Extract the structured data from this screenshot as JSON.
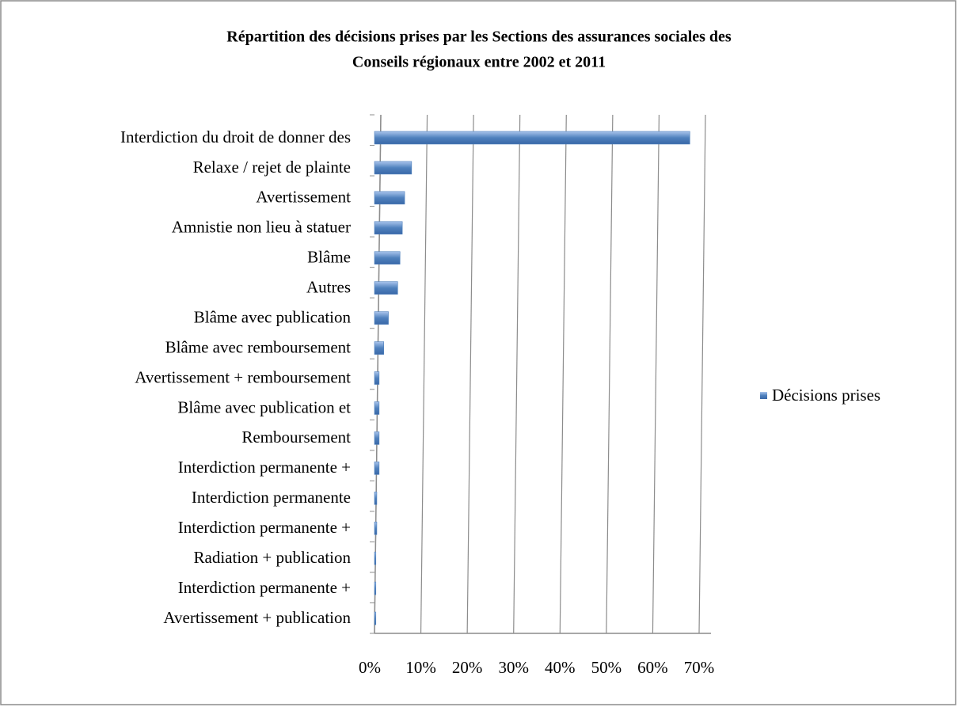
{
  "chart_data": {
    "type": "bar",
    "orientation": "horizontal",
    "title": "Répartition des décisions prises par les Sections des assurances sociales des Conseils régionaux entre 2002 et 2011",
    "title_lines": [
      "Répartition des décisions prises par les Sections des assurances sociales des",
      "Conseils régionaux entre 2002 et 2011"
    ],
    "categories": [
      "Interdiction du droit de donner des",
      "Relaxe / rejet de plainte",
      "Avertissement",
      "Amnistie non lieu à statuer",
      "Blâme",
      "Autres",
      "Blâme avec publication",
      "Blâme avec remboursement",
      "Avertissement + remboursement",
      "Blâme avec publication et",
      "Remboursement",
      "Interdiction permanente +",
      "Interdiction permanente",
      "Interdiction permanente +",
      "Radiation + publication",
      "Interdiction permanente +",
      "Avertissement + publication"
    ],
    "series": [
      {
        "name": "Décisions prises",
        "color": "#4f81bd",
        "values": [
          68,
          8,
          6.5,
          6,
          5.5,
          5,
          3,
          2,
          1,
          1,
          1,
          1,
          0.5,
          0.5,
          0.3,
          0.3,
          0.3
        ]
      }
    ],
    "xlim": [
      0,
      70
    ],
    "xticks": [
      {
        "value": 0,
        "label": "0%"
      },
      {
        "value": 10,
        "label": "10%"
      },
      {
        "value": 20,
        "label": "20%"
      },
      {
        "value": 30,
        "label": "30%"
      },
      {
        "value": 40,
        "label": "40%"
      },
      {
        "value": 50,
        "label": "50%"
      },
      {
        "value": 60,
        "label": "60%"
      },
      {
        "value": 70,
        "label": "70%"
      }
    ],
    "grid": true,
    "legend": "right"
  }
}
